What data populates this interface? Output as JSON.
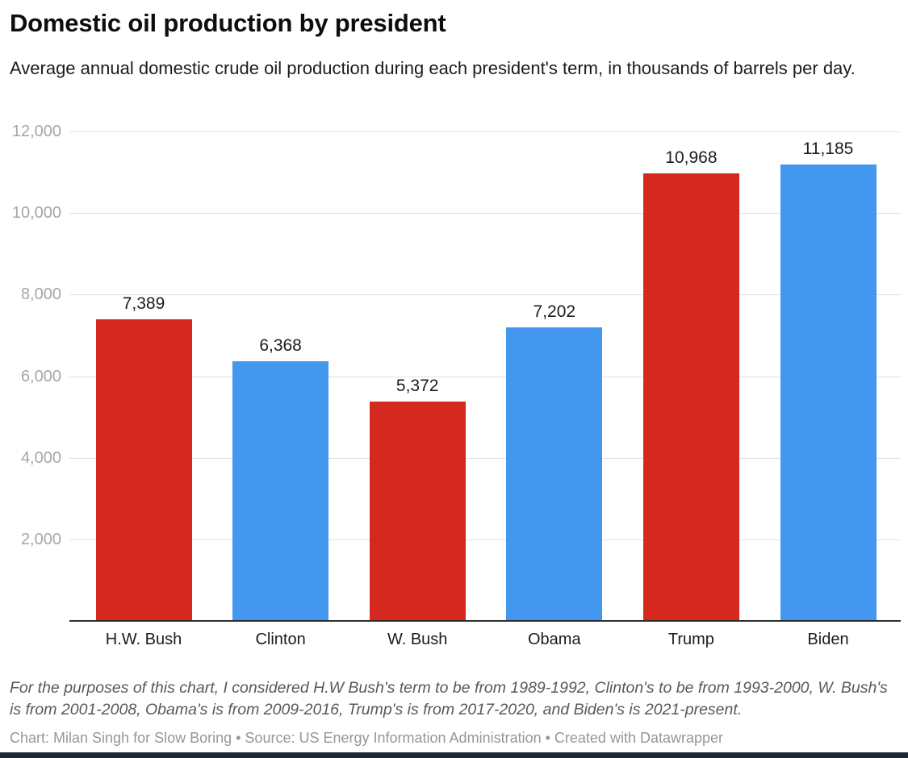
{
  "header": {
    "title": "Domestic oil production by president",
    "subtitle": "Average annual domestic crude oil production during each president's term, in thousands of barrels per day."
  },
  "chart_data": {
    "type": "bar",
    "title": "Domestic oil production by president",
    "subtitle": "Average annual domestic crude oil production during each president's term, in thousands of barrels per day.",
    "categories": [
      "H.W. Bush",
      "Clinton",
      "W. Bush",
      "Obama",
      "Trump",
      "Biden"
    ],
    "values": [
      7389,
      6368,
      5372,
      7202,
      10968,
      11185
    ],
    "value_labels": [
      "7,389",
      "6,368",
      "5,372",
      "7,202",
      "10,968",
      "11,185"
    ],
    "bar_parties": [
      "republican",
      "democrat",
      "republican",
      "democrat",
      "republican",
      "democrat"
    ],
    "bar_colors": [
      "#d5281f",
      "#4497ee",
      "#d5281f",
      "#4497ee",
      "#d5281f",
      "#4497ee"
    ],
    "xlabel": "",
    "ylabel": "",
    "units": "thousands of barrels per day",
    "ylim": [
      0,
      12000
    ],
    "yticks": [
      2000,
      4000,
      6000,
      8000,
      10000,
      12000
    ],
    "ytick_labels": [
      "2,000",
      "4,000",
      "6,000",
      "8,000",
      "10,000",
      "12,000"
    ],
    "grid": true,
    "legend": false,
    "value_labels_shown": true
  },
  "footer": {
    "note": "For the purposes of this chart, I considered H.W Bush's term to be from 1989-1992, Clinton's to be from 1993-2000, W. Bush's is from 2001-2008, Obama's is from 2009-2016, Trump's is from 2017-2020, and Biden's is 2021-present.",
    "credit": "Chart: Milan Singh for Slow Boring • Source: US Energy Information Administration • Created with Datawrapper"
  },
  "colors": {
    "republican_red": "#d5281f",
    "democrat_blue": "#4497ee",
    "gridline": "#e0e0e0",
    "axis_line": "#2e2e2e",
    "ytick_text": "#a6a6a6",
    "note_text": "#595959",
    "credit_text": "#979797",
    "bottom_strip": "#1b2734"
  }
}
